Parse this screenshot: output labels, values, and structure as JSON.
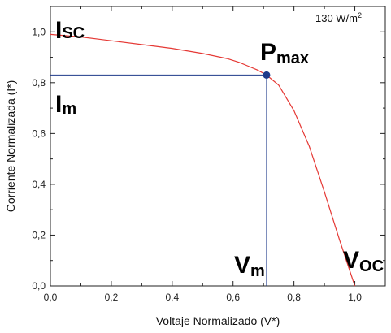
{
  "chart_data": {
    "type": "line",
    "xlabel": "Voltaje Normalizado (V*)",
    "ylabel": "Corriente Normalizada (I*)",
    "xlim": [
      0,
      1.1
    ],
    "ylim": [
      0,
      1.1
    ],
    "x_ticks": [
      "0,0",
      "0,2",
      "0,4",
      "0,6",
      "0,8",
      "1,0"
    ],
    "y_ticks": [
      "0,0",
      "0,2",
      "0,4",
      "0,6",
      "0,8",
      "1,0"
    ],
    "irradiance_label": "130 W/m",
    "irradiance_sup": "2",
    "curve_color": "#e53935",
    "marker_color": "#1e3a8a",
    "guide_color": "#1e3a8a",
    "series": [
      {
        "x": [
          0.0,
          0.1,
          0.2,
          0.3,
          0.4,
          0.5,
          0.58,
          0.62,
          0.65,
          0.68,
          0.71,
          0.75,
          0.8,
          0.85,
          0.9,
          0.95,
          1.0
        ],
        "y": [
          0.99,
          0.98,
          0.965,
          0.95,
          0.935,
          0.915,
          0.895,
          0.88,
          0.865,
          0.85,
          0.83,
          0.79,
          0.69,
          0.55,
          0.37,
          0.18,
          0.0
        ]
      }
    ],
    "pmax_point": {
      "x": 0.71,
      "y": 0.83
    },
    "annotations": {
      "isc": {
        "main": "I",
        "sub": "SC"
      },
      "im": {
        "main": "I",
        "sub": "m"
      },
      "pmax": {
        "main": "P",
        "sub": "max"
      },
      "vm": {
        "main": "V",
        "sub": "m"
      },
      "voc": {
        "main": "V",
        "sub": "OC"
      }
    }
  }
}
